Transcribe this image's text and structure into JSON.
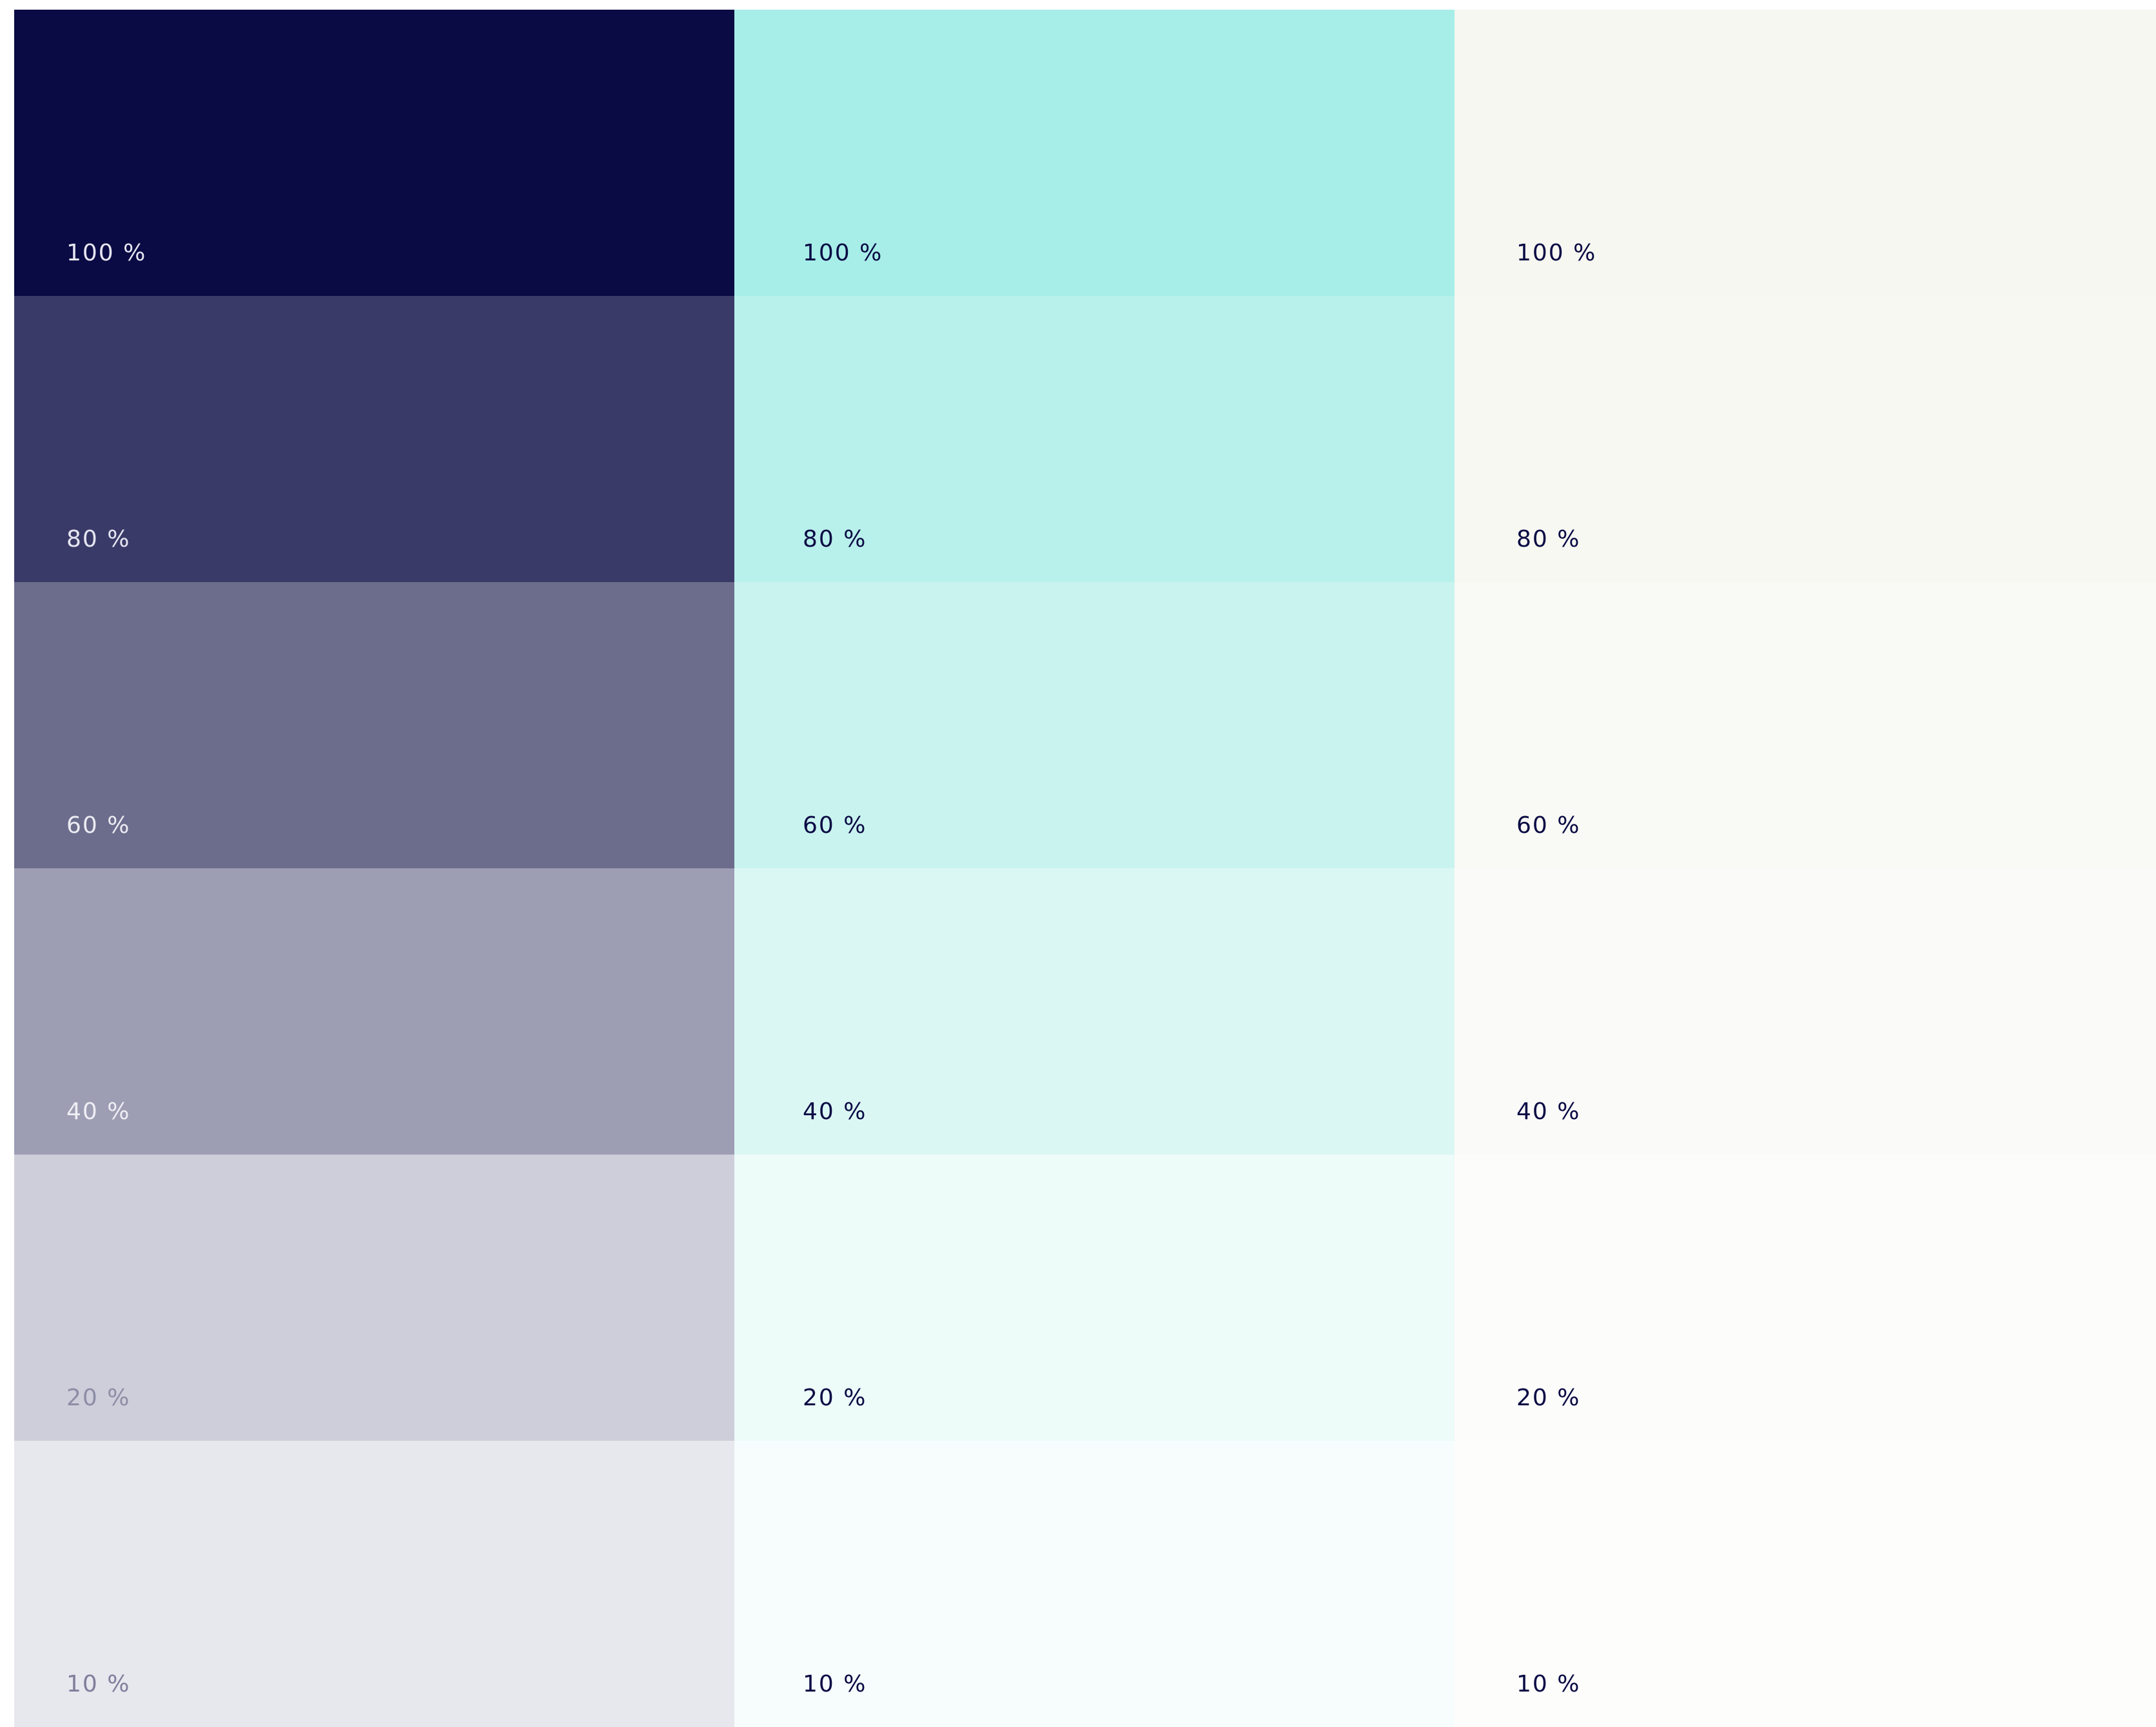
{
  "palette": {
    "columns": [
      {
        "swatches": [
          {
            "label": "100 %",
            "color": "#0a0a44",
            "text_color": "#e6e6f2"
          },
          {
            "label": "80 %",
            "color": "#3a3a69",
            "text_color": "#e6e6f2"
          },
          {
            "label": "60 %",
            "color": "#6c6c8c",
            "text_color": "#ebebf3"
          },
          {
            "label": "40 %",
            "color": "#9d9db4",
            "text_color": "#eeeef4"
          },
          {
            "label": "20 %",
            "color": "#cecedb",
            "text_color": "#8d8da6"
          },
          {
            "label": "10 %",
            "color": "#e7e7ee",
            "text_color": "#7f7f9c"
          }
        ]
      },
      {
        "swatches": [
          {
            "label": "100 %",
            "color": "#a7eee8",
            "text_color": "#0a0a44"
          },
          {
            "label": "80 %",
            "color": "#b8f0eb",
            "text_color": "#0a0a44"
          },
          {
            "label": "60 %",
            "color": "#c9f3ef",
            "text_color": "#0a0a44"
          },
          {
            "label": "40 %",
            "color": "#dbf7f4",
            "text_color": "#0a0a44"
          },
          {
            "label": "20 %",
            "color": "#edfbf9",
            "text_color": "#0a0a44"
          },
          {
            "label": "10 %",
            "color": "#f6fdfc",
            "text_color": "#0a0a44"
          }
        ]
      },
      {
        "swatches": [
          {
            "label": "100 %",
            "color": "#f6f7f0",
            "text_color": "#0a0a44"
          },
          {
            "label": "80 %",
            "color": "#f7f8f2",
            "text_color": "#0a0a44"
          },
          {
            "label": "60 %",
            "color": "#f9f9f5",
            "text_color": "#0a0a44"
          },
          {
            "label": "40 %",
            "color": "#fafbf8",
            "text_color": "#0a0a44"
          },
          {
            "label": "20 %",
            "color": "#fcfcfa",
            "text_color": "#0a0a44"
          },
          {
            "label": "10 %",
            "color": "#fdfdfc",
            "text_color": "#0a0a44"
          }
        ]
      }
    ]
  }
}
